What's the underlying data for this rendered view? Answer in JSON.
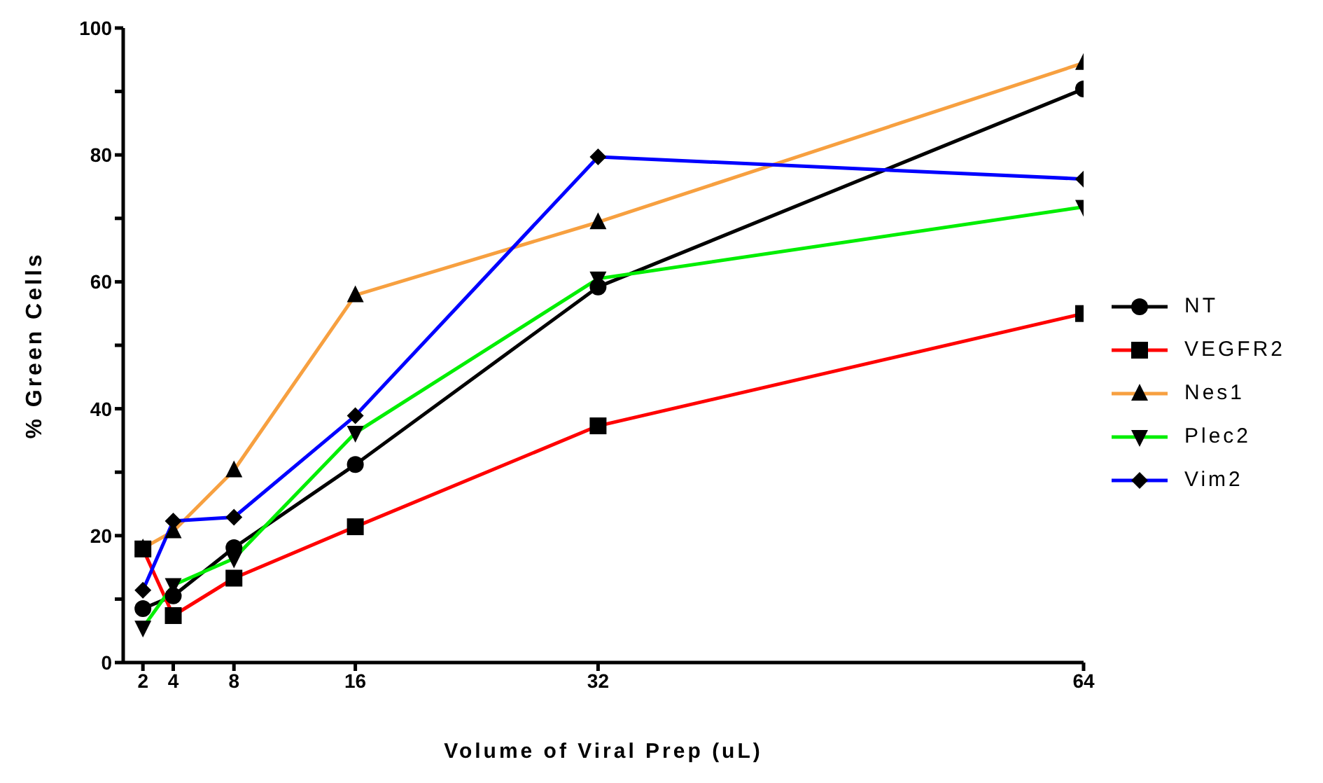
{
  "chart_data": {
    "type": "line",
    "xlabel": "Volume of Viral Prep (uL)",
    "ylabel": "% Green Cells",
    "x": [
      2,
      4,
      8,
      16,
      32,
      64
    ],
    "xlim": [
      0.7,
      64
    ],
    "xticks": [
      2,
      4,
      8,
      16,
      32,
      64
    ],
    "ylim": [
      0,
      100
    ],
    "yticks": [
      0,
      {
        "value": 10,
        "label": null
      },
      20,
      {
        "value": 30,
        "label": null
      },
      40,
      {
        "value": 50,
        "label": null
      },
      60,
      {
        "value": 70,
        "label": null
      },
      80,
      {
        "value": 90,
        "label": null
      },
      100
    ],
    "legend": "right",
    "grid": false,
    "line_style": "solid",
    "series": [
      {
        "name": "NT",
        "color": "#000000",
        "marker": "circle",
        "values": [
          8.5,
          10.5,
          18.1,
          31.2,
          59.2,
          90.4
        ]
      },
      {
        "name": "VEGFR2",
        "color": "#ff0000",
        "marker": "square",
        "values": [
          17.9,
          7.4,
          13.3,
          21.4,
          37.3,
          55.0
        ]
      },
      {
        "name": "Nes1",
        "color": "#f7a040",
        "marker": "triangle",
        "values": [
          18,
          20.7,
          30.3,
          57.9,
          69.4,
          94.5
        ]
      },
      {
        "name": "Plec2",
        "color": "#00ee00",
        "marker": "triangle-down",
        "values": [
          5.5,
          12.2,
          16.4,
          36.2,
          60.5,
          71.8
        ]
      },
      {
        "name": "Vim2",
        "color": "#0000ff",
        "marker": "diamond",
        "values": [
          11.4,
          22.3,
          22.9,
          38.9,
          79.7,
          76.2
        ]
      }
    ]
  }
}
